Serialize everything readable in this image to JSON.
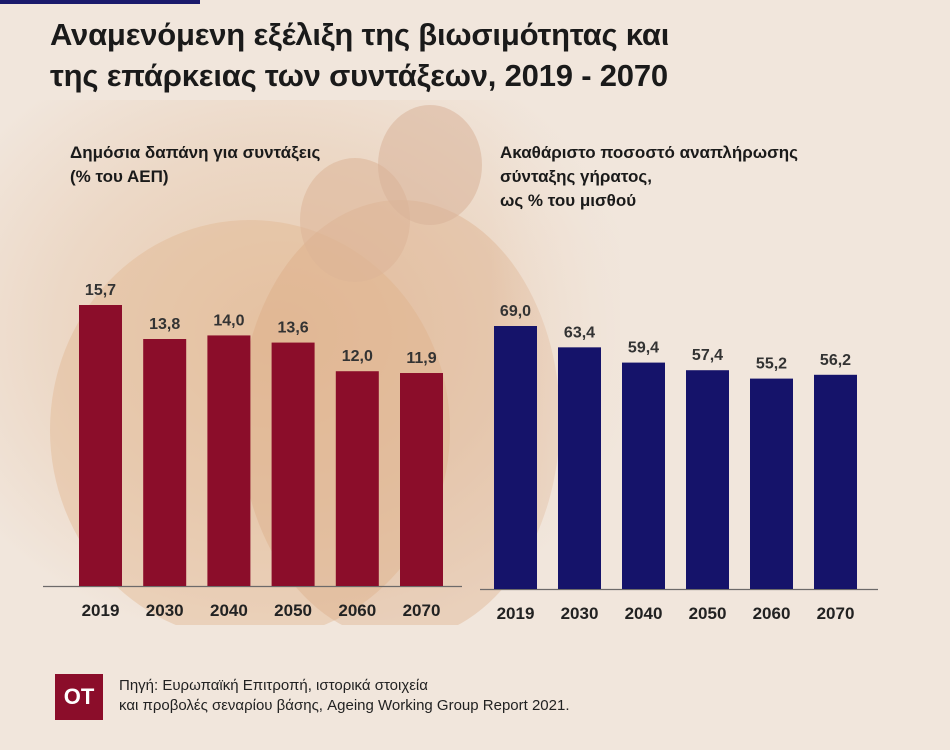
{
  "title": {
    "line1": "Αναμενόμενη εξέλιξη της βιωσιμότητας και",
    "line2": "της επάρκειας των συντάξεων, 2019 - 2070"
  },
  "colors": {
    "left_bars": "#8b0d2a",
    "right_bars": "#15136a",
    "logo_bg": "#8b0d2a",
    "accent_rule": "#1b1a6b"
  },
  "chart_data": [
    {
      "type": "bar",
      "title_lines": [
        "Δημόσια δαπάνη για συντάξεις",
        "(% του ΑΕΠ)"
      ],
      "categories": [
        "2019",
        "2030",
        "2040",
        "2050",
        "2060",
        "2070"
      ],
      "values": [
        15.7,
        13.8,
        14.0,
        13.6,
        12.0,
        11.9
      ],
      "value_labels": [
        "15,7",
        "13,8",
        "14,0",
        "13,6",
        "12,0",
        "11,9"
      ],
      "ylim": [
        0,
        15.7
      ],
      "grid": false,
      "legend": "none"
    },
    {
      "type": "bar",
      "title_lines": [
        "Ακαθάριστο ποσοστό αναπλήρωσης",
        "σύνταξης γήρατος,",
        "ως % του μισθού"
      ],
      "categories": [
        "2019",
        "2030",
        "2040",
        "2050",
        "2060",
        "2070"
      ],
      "values": [
        69.0,
        63.4,
        59.4,
        57.4,
        55.2,
        56.2
      ],
      "value_labels": [
        "69,0",
        "63,4",
        "59,4",
        "57,4",
        "55,2",
        "56,2"
      ],
      "ylim": [
        0,
        69.0
      ],
      "grid": false,
      "legend": "none"
    }
  ],
  "footer": {
    "logo_text": "ΟΤ",
    "source_line1": "Πηγή: Ευρωπαϊκή Επιτροπή, ιστορικά στοιχεία",
    "source_line2": "και προβολές σεναρίου βάσης, Ageing Working Group Report 2021."
  }
}
